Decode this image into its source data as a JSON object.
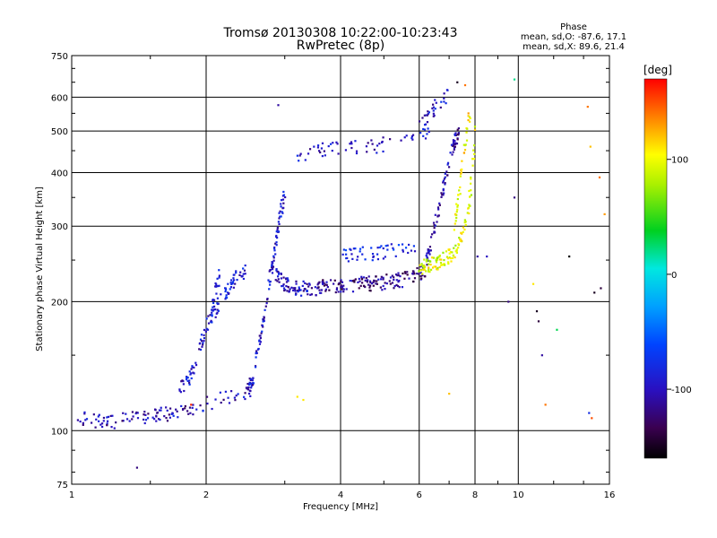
{
  "chart_data": {
    "type": "scatter",
    "title": "Tromsø 20130308 10:22:00-10:23:43",
    "subtitle": "RwPretec (8p)",
    "xlabel": "Frequency [MHz]",
    "ylabel": "Stationary phase Virtual Height [km]",
    "x_scale": "log",
    "y_scale": "log",
    "xlim": [
      1,
      16
    ],
    "ylim": [
      75,
      750
    ],
    "grid": true,
    "x_ticks": [
      1,
      2,
      4,
      6,
      8,
      10,
      16
    ],
    "x_tick_labels": [
      "1",
      "2",
      "4",
      "6",
      "8",
      "10",
      "16"
    ],
    "x_grid": [
      1,
      2,
      4,
      6,
      8,
      10,
      16
    ],
    "y_ticks": [
      75,
      100,
      200,
      300,
      400,
      500,
      600,
      750
    ],
    "y_tick_labels": [
      "75",
      "100",
      "200",
      "300",
      "400",
      "500",
      "600",
      "750"
    ],
    "y_grid": [
      100,
      200,
      300,
      400,
      500,
      600
    ],
    "stats": {
      "heading": "Phase",
      "line_o": "mean, sd,O: -87.6, 17.1",
      "line_x": "mean, sd,X:  89.6, 21.4"
    },
    "colorbar": {
      "label": "[deg]",
      "range": [
        -160,
        170
      ],
      "ticks": [
        100,
        0,
        -100
      ],
      "tick_labels": [
        "100",
        "0",
        "-100"
      ]
    },
    "traces": [
      {
        "phase": -105,
        "count": 80,
        "f_range": [
          1.0,
          1.9
        ],
        "points": [
          [
            1.0,
            107
          ],
          [
            1.2,
            105
          ],
          [
            1.4,
            107
          ],
          [
            1.6,
            109
          ],
          [
            1.8,
            112
          ],
          [
            1.9,
            114
          ]
        ]
      },
      {
        "phase": -100,
        "count": 40,
        "f_range": [
          1.6,
          2.55
        ],
        "points": [
          [
            1.6,
            110
          ],
          [
            1.8,
            113
          ],
          [
            2.0,
            116
          ],
          [
            2.2,
            119
          ],
          [
            2.4,
            122
          ],
          [
            2.55,
            125
          ]
        ]
      },
      {
        "phase": -95,
        "count": 70,
        "f_range": [
          1.75,
          2.15
        ],
        "points": [
          [
            1.75,
            125
          ],
          [
            1.85,
            135
          ],
          [
            1.95,
            160
          ],
          [
            2.05,
            190
          ],
          [
            2.1,
            215
          ],
          [
            2.15,
            230
          ]
        ]
      },
      {
        "phase": -90,
        "count": 60,
        "f_range": [
          2.05,
          2.45
        ],
        "points": [
          [
            2.05,
            185
          ],
          [
            2.15,
            200
          ],
          [
            2.25,
            215
          ],
          [
            2.35,
            230
          ],
          [
            2.45,
            235
          ]
        ]
      },
      {
        "phase": -95,
        "count": 110,
        "f_range": [
          2.45,
          3.0
        ],
        "points": [
          [
            2.45,
            120
          ],
          [
            2.55,
            135
          ],
          [
            2.65,
            165
          ],
          [
            2.75,
            210
          ],
          [
            2.85,
            270
          ],
          [
            2.95,
            330
          ],
          [
            3.0,
            360
          ]
        ]
      },
      {
        "phase": -100,
        "count": 70,
        "f_range": [
          2.8,
          3.4
        ],
        "points": [
          [
            2.8,
            240
          ],
          [
            3.0,
            220
          ],
          [
            3.2,
            215
          ],
          [
            3.4,
            215
          ]
        ]
      },
      {
        "phase": -115,
        "count": 160,
        "f_range": [
          3.4,
          6.2
        ],
        "points": [
          [
            3.4,
            215
          ],
          [
            4.0,
            218
          ],
          [
            4.5,
            220
          ],
          [
            5.0,
            222
          ],
          [
            5.5,
            225
          ],
          [
            6.0,
            232
          ],
          [
            6.2,
            238
          ]
        ]
      },
      {
        "phase": -110,
        "count": 90,
        "f_range": [
          6.2,
          7.4
        ],
        "points": [
          [
            6.2,
            245
          ],
          [
            6.4,
            275
          ],
          [
            6.6,
            320
          ],
          [
            6.8,
            370
          ],
          [
            7.0,
            430
          ],
          [
            7.2,
            470
          ],
          [
            7.4,
            500
          ]
        ]
      },
      {
        "phase": -100,
        "count": 60,
        "f_range": [
          3.2,
          6.4
        ],
        "points": [
          [
            3.2,
            440
          ],
          [
            3.6,
            450
          ],
          [
            4.0,
            455
          ],
          [
            4.6,
            460
          ],
          [
            5.4,
            470
          ],
          [
            6.0,
            480
          ],
          [
            6.4,
            520
          ]
        ]
      },
      {
        "phase": -95,
        "count": 30,
        "f_range": [
          6.0,
          7.0
        ],
        "points": [
          [
            6.0,
            510
          ],
          [
            6.3,
            540
          ],
          [
            6.6,
            580
          ],
          [
            7.0,
            610
          ]
        ]
      },
      {
        "phase": -80,
        "count": 50,
        "f_range": [
          4.0,
          6.0
        ],
        "points": [
          [
            4.0,
            255
          ],
          [
            4.5,
            258
          ],
          [
            5.0,
            262
          ],
          [
            5.5,
            265
          ],
          [
            6.0,
            260
          ]
        ]
      },
      {
        "phase": 95,
        "count": 120,
        "f_range": [
          6.0,
          8.0
        ],
        "points": [
          [
            6.0,
            240
          ],
          [
            6.5,
            245
          ],
          [
            7.0,
            255
          ],
          [
            7.4,
            275
          ],
          [
            7.7,
            320
          ],
          [
            7.85,
            380
          ],
          [
            7.95,
            450
          ],
          [
            8.0,
            540
          ]
        ]
      },
      {
        "phase": 105,
        "count": 40,
        "f_range": [
          7.2,
          7.8
        ],
        "points": [
          [
            7.2,
            300
          ],
          [
            7.4,
            380
          ],
          [
            7.6,
            470
          ],
          [
            7.8,
            560
          ]
        ]
      }
    ],
    "scatter": [
      {
        "x": 2.9,
        "y": 575,
        "phase": -110
      },
      {
        "x": 1.4,
        "y": 82,
        "phase": -120
      },
      {
        "x": 3.3,
        "y": 118,
        "phase": 110
      },
      {
        "x": 3.2,
        "y": 120,
        "phase": 110
      },
      {
        "x": 7.0,
        "y": 122,
        "phase": 120
      },
      {
        "x": 8.1,
        "y": 255,
        "phase": -110
      },
      {
        "x": 8.5,
        "y": 255,
        "phase": -100
      },
      {
        "x": 9.5,
        "y": 200,
        "phase": -120
      },
      {
        "x": 9.8,
        "y": 660,
        "phase": 20
      },
      {
        "x": 10.8,
        "y": 220,
        "phase": 110
      },
      {
        "x": 11.0,
        "y": 190,
        "phase": -150
      },
      {
        "x": 11.1,
        "y": 180,
        "phase": -140
      },
      {
        "x": 11.3,
        "y": 150,
        "phase": -110
      },
      {
        "x": 11.5,
        "y": 115,
        "phase": 140
      },
      {
        "x": 12.2,
        "y": 172,
        "phase": 30
      },
      {
        "x": 13.0,
        "y": 255,
        "phase": -160
      },
      {
        "x": 14.3,
        "y": 570,
        "phase": 140
      },
      {
        "x": 14.5,
        "y": 460,
        "phase": 120
      },
      {
        "x": 14.4,
        "y": 110,
        "phase": -80
      },
      {
        "x": 14.6,
        "y": 107,
        "phase": 150
      },
      {
        "x": 14.8,
        "y": 210,
        "phase": -150
      },
      {
        "x": 15.3,
        "y": 215,
        "phase": -140
      },
      {
        "x": 15.6,
        "y": 320,
        "phase": 130
      },
      {
        "x": 15.2,
        "y": 390,
        "phase": 140
      },
      {
        "x": 9.8,
        "y": 350,
        "phase": -120
      },
      {
        "x": 7.3,
        "y": 650,
        "phase": -150
      },
      {
        "x": 7.6,
        "y": 640,
        "phase": 140
      },
      {
        "x": 1.85,
        "y": 115,
        "phase": 160
      }
    ]
  }
}
